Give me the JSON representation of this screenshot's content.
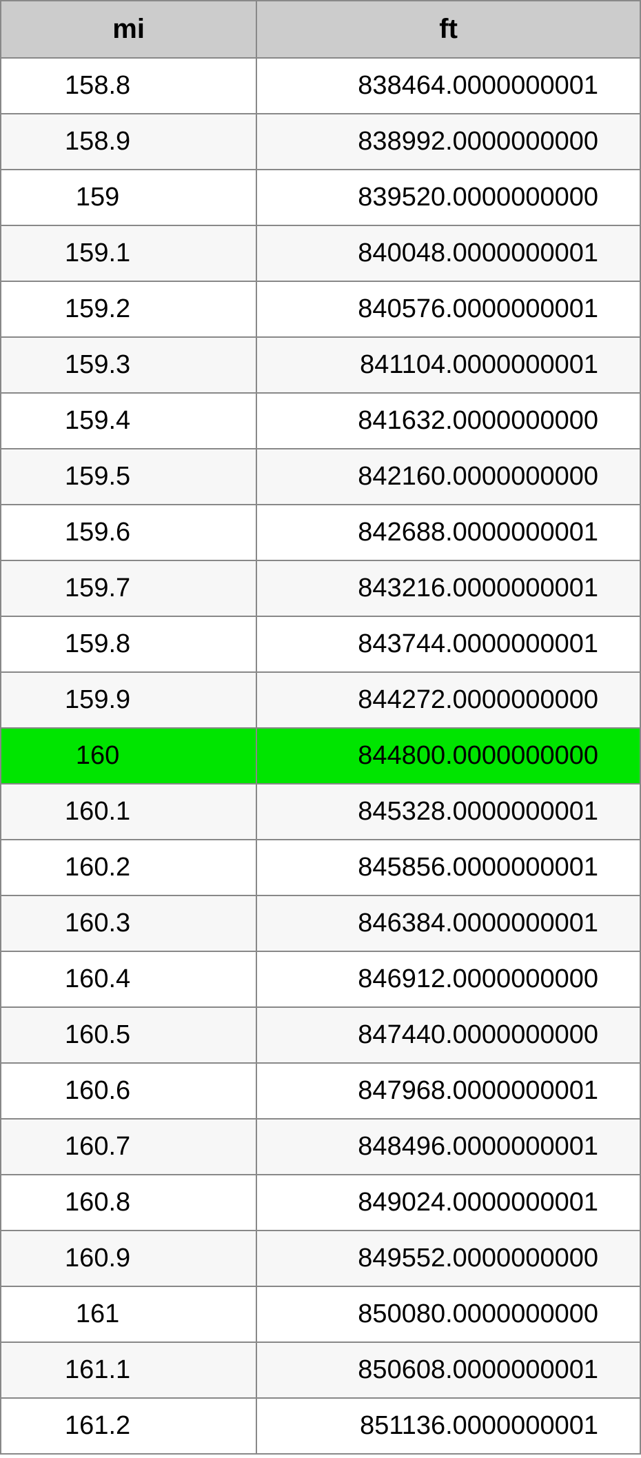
{
  "table": {
    "type": "table",
    "header_bg": "#cccccc",
    "row_alt_bg": "#f7f7f7",
    "row_bg": "#ffffff",
    "highlight_bg": "#00e500",
    "border_color": "#888888",
    "text_color": "#000000",
    "header_fontsize": 40,
    "cell_fontsize": 38,
    "columns": [
      {
        "label": "mi",
        "align": "center",
        "width_pct": 40
      },
      {
        "label": "ft",
        "align": "right",
        "width_pct": 60
      }
    ],
    "highlight_index": 12,
    "rows": [
      {
        "mi": "158.8",
        "ft": "838464.0000000001"
      },
      {
        "mi": "158.9",
        "ft": "838992.0000000000"
      },
      {
        "mi": "159",
        "ft": "839520.0000000000"
      },
      {
        "mi": "159.1",
        "ft": "840048.0000000001"
      },
      {
        "mi": "159.2",
        "ft": "840576.0000000001"
      },
      {
        "mi": "159.3",
        "ft": "841104.0000000001"
      },
      {
        "mi": "159.4",
        "ft": "841632.0000000000"
      },
      {
        "mi": "159.5",
        "ft": "842160.0000000000"
      },
      {
        "mi": "159.6",
        "ft": "842688.0000000001"
      },
      {
        "mi": "159.7",
        "ft": "843216.0000000001"
      },
      {
        "mi": "159.8",
        "ft": "843744.0000000001"
      },
      {
        "mi": "159.9",
        "ft": "844272.0000000000"
      },
      {
        "mi": "160",
        "ft": "844800.0000000000"
      },
      {
        "mi": "160.1",
        "ft": "845328.0000000001"
      },
      {
        "mi": "160.2",
        "ft": "845856.0000000001"
      },
      {
        "mi": "160.3",
        "ft": "846384.0000000001"
      },
      {
        "mi": "160.4",
        "ft": "846912.0000000000"
      },
      {
        "mi": "160.5",
        "ft": "847440.0000000000"
      },
      {
        "mi": "160.6",
        "ft": "847968.0000000001"
      },
      {
        "mi": "160.7",
        "ft": "848496.0000000001"
      },
      {
        "mi": "160.8",
        "ft": "849024.0000000001"
      },
      {
        "mi": "160.9",
        "ft": "849552.0000000000"
      },
      {
        "mi": "161",
        "ft": "850080.0000000000"
      },
      {
        "mi": "161.1",
        "ft": "850608.0000000001"
      },
      {
        "mi": "161.2",
        "ft": "851136.0000000001"
      }
    ]
  }
}
